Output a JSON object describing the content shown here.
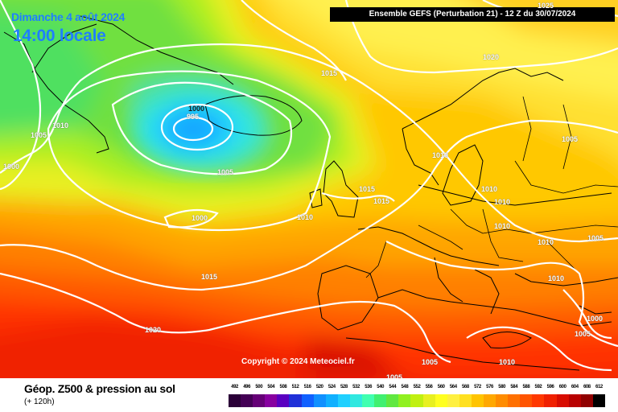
{
  "header": {
    "date": "Dimanche 4 août 2024",
    "time": "14:00 locale",
    "run_info": "Ensemble GEFS  (Perturbation 21)  -  12 Z du 30/07/2024"
  },
  "copyright": "Copyright © 2024 Meteociel.fr",
  "footer": {
    "title": "Géop. Z500 & pression au sol",
    "subtitle": "(+ 120h)"
  },
  "isobar_labels": [
    "1000",
    "995",
    "1005",
    "1010",
    "1005",
    "1000",
    "1015",
    "1020",
    "1025",
    "1005",
    "1010",
    "1015",
    "1015",
    "1000",
    "1010",
    "1010",
    "1010",
    "1010",
    "1010",
    "1005",
    "1015",
    "1010",
    "1020",
    "1000",
    "1005",
    "1005",
    "1005",
    "1010"
  ],
  "legend": {
    "values": [
      "492",
      "496",
      "500",
      "504",
      "508",
      "512",
      "516",
      "520",
      "524",
      "528",
      "532",
      "536",
      "540",
      "544",
      "548",
      "552",
      "556",
      "560",
      "564",
      "568",
      "572",
      "576",
      "580",
      "584",
      "588",
      "592",
      "596",
      "600",
      "604",
      "608",
      "612"
    ],
    "colors": [
      "#2b0038",
      "#440055",
      "#660077",
      "#8800a0",
      "#5a00c0",
      "#2030d8",
      "#1060ff",
      "#1090ff",
      "#10b0ff",
      "#20d0ff",
      "#30e8e0",
      "#40ffb0",
      "#40f070",
      "#60e840",
      "#90f020",
      "#c0f010",
      "#e8f020",
      "#ffff20",
      "#fff040",
      "#ffe020",
      "#ffc400",
      "#ffa800",
      "#ff8c00",
      "#ff7000",
      "#ff5400",
      "#ff3800",
      "#f02000",
      "#d80c00",
      "#b80000",
      "#900000",
      "#000000"
    ]
  }
}
